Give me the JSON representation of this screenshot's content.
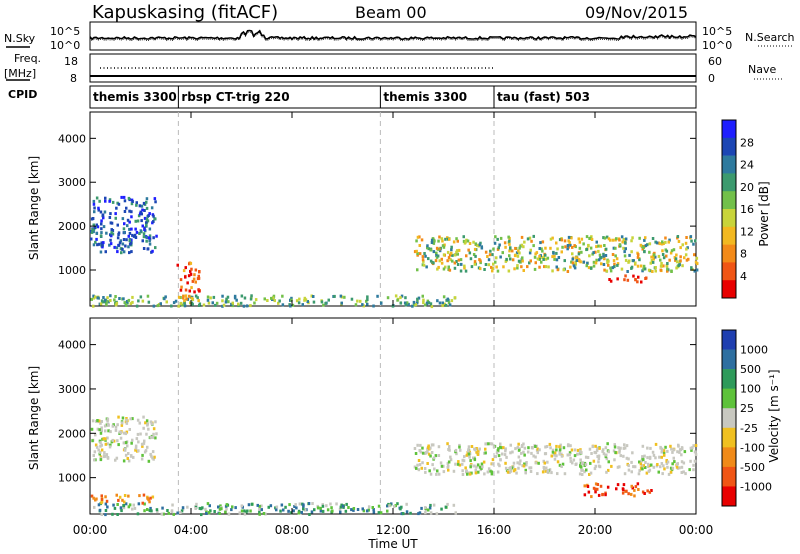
{
  "header": {
    "title": "Kapuskasing (fitACF)",
    "beam": "Beam 00",
    "date": "09/Nov/2015"
  },
  "side_labels": {
    "nsky": "N.Sky",
    "nsearch": "N.Search",
    "freq": "Freq.",
    "freq_unit": "[MHz]",
    "nave": "Nave",
    "cpid": "CPID"
  },
  "noise_axis": {
    "left_ticks": [
      "10^5",
      "10^0"
    ],
    "right_ticks": [
      "10^5",
      "10^0"
    ]
  },
  "freq_axis": {
    "left_ticks": [
      "18",
      "8"
    ],
    "right_ticks": [
      "60",
      "0"
    ]
  },
  "cpid_segments": [
    {
      "label": "themis 3300",
      "start_hour": 0
    },
    {
      "label": "rbsp CT-trig 220",
      "start_hour": 3.5
    },
    {
      "label": "themis 3300",
      "start_hour": 11.5
    },
    {
      "label": "tau (fast) 503",
      "start_hour": 16
    }
  ],
  "chart_data": [
    {
      "type": "heatmap",
      "name": "power",
      "ylabel": "Slant Range [km]",
      "xlim_hours": [
        0,
        24
      ],
      "ylim_km": [
        180,
        4600
      ],
      "yticks": [
        "1000",
        "2000",
        "3000",
        "4000"
      ],
      "colorbar": {
        "label": "Power [dB]",
        "ticks": [
          "4",
          "8",
          "12",
          "16",
          "20",
          "24",
          "28"
        ],
        "colors": [
          "#1f1fff",
          "#1c46b4",
          "#2e7a9e",
          "#3c9a6e",
          "#72c04a",
          "#c8d43a",
          "#f2b820",
          "#f38a18",
          "#f05515",
          "#e80000"
        ]
      },
      "echo_regions": [
        {
          "description": "near-range band",
          "hours": [
            0,
            14.5
          ],
          "range_km": [
            200,
            450
          ],
          "dominant": "green-yellow"
        },
        {
          "description": "early streak",
          "hours": [
            0,
            2.6
          ],
          "range_km": [
            1400,
            2700
          ],
          "dominant": "blue-green"
        },
        {
          "description": "04:00 burst",
          "hours": [
            3.4,
            4.3
          ],
          "range_km": [
            300,
            1200
          ],
          "dominant": "orange-red"
        },
        {
          "description": "evening band",
          "hours": [
            12.8,
            24
          ],
          "range_km": [
            1000,
            1800
          ],
          "dominant": "yellow-orange"
        },
        {
          "description": "late red patch",
          "hours": [
            20.5,
            22
          ],
          "range_km": [
            700,
            900
          ],
          "dominant": "red"
        }
      ]
    },
    {
      "type": "heatmap",
      "name": "velocity",
      "ylabel": "Slant Range [km]",
      "xlabel": "Time UT",
      "xlim_hours": [
        0,
        24
      ],
      "ylim_km": [
        180,
        4600
      ],
      "xticks": [
        "00:00",
        "04:00",
        "08:00",
        "12:00",
        "16:00",
        "20:00",
        "00:00"
      ],
      "yticks": [
        "1000",
        "2000",
        "3000",
        "4000"
      ],
      "colorbar": {
        "label": "Velocity [m s⁻¹]",
        "ticks": [
          "1000",
          "500",
          "100",
          "25",
          "-25",
          "-100",
          "-500",
          "-1000"
        ],
        "colors": [
          "#1f3fb0",
          "#2e6fa0",
          "#2e9a5a",
          "#5ec23a",
          "#c8c8c0",
          "#f0c020",
          "#f08a18",
          "#f05515",
          "#e80000"
        ]
      },
      "echo_regions": [
        {
          "description": "near-range band",
          "hours": [
            0,
            14.5
          ],
          "range_km": [
            200,
            450
          ],
          "dominant": "green"
        },
        {
          "description": "early streak",
          "hours": [
            0,
            2.6
          ],
          "range_km": [
            1400,
            2400
          ],
          "dominant": "grey"
        },
        {
          "description": "early orange",
          "hours": [
            0,
            2.5
          ],
          "range_km": [
            450,
            650
          ],
          "dominant": "orange"
        },
        {
          "description": "evening band",
          "hours": [
            12.8,
            24
          ],
          "range_km": [
            1100,
            1800
          ],
          "dominant": "grey"
        },
        {
          "description": "late orange patch",
          "hours": [
            19.5,
            22.2
          ],
          "range_km": [
            600,
            900
          ],
          "dominant": "orange-red"
        }
      ]
    }
  ]
}
